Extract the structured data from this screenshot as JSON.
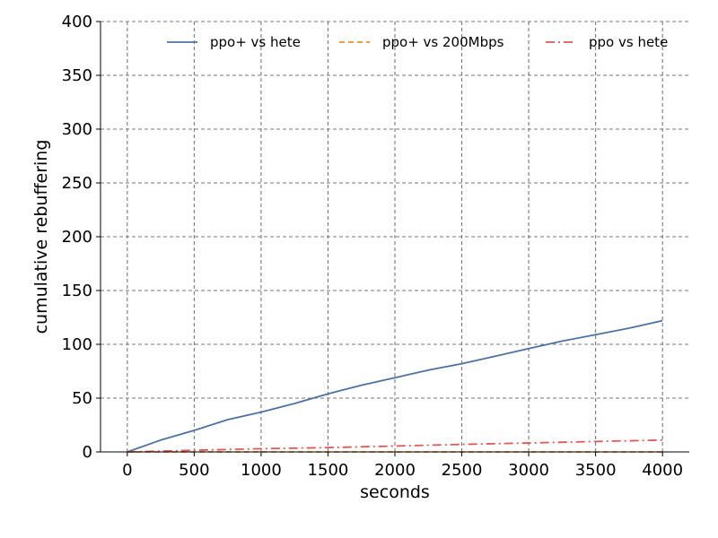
{
  "chart_data": {
    "type": "line",
    "xlabel": "seconds",
    "ylabel": "cumulative rebuffering",
    "xlim": [
      -200,
      4200
    ],
    "ylim": [
      0,
      400
    ],
    "xticks": [
      0,
      500,
      1000,
      1500,
      2000,
      2500,
      3000,
      3500,
      4000
    ],
    "yticks": [
      0,
      50,
      100,
      150,
      200,
      250,
      300,
      350,
      400
    ],
    "grid": true,
    "legend_position": "top",
    "series": [
      {
        "name": "ppo+ vs hete",
        "color": "#4c72a4",
        "dash": "solid",
        "x": [
          0,
          250,
          500,
          750,
          1000,
          1250,
          1500,
          1750,
          2000,
          2250,
          2500,
          2750,
          3000,
          3250,
          3500,
          3750,
          4000
        ],
        "y": [
          0,
          11,
          20,
          30,
          37,
          45,
          54,
          62,
          69,
          76,
          82,
          89,
          96,
          103,
          109,
          115,
          122
        ]
      },
      {
        "name": "ppo+ vs 200Mbps",
        "color": "#f28e2b",
        "dash": "dashed",
        "x": [
          0,
          500,
          1000,
          1500,
          2000,
          2500,
          3000,
          3500,
          4000
        ],
        "y": [
          0,
          0,
          0,
          0,
          0,
          0,
          0,
          0,
          0
        ]
      },
      {
        "name": "ppo vs hete",
        "color": "#e15759",
        "dash": "dashdot",
        "x": [
          0,
          500,
          1000,
          1500,
          2000,
          2500,
          3000,
          3500,
          4000
        ],
        "y": [
          0,
          1.5,
          3,
          4,
          5.5,
          7,
          8.3,
          9.7,
          11
        ]
      }
    ]
  }
}
